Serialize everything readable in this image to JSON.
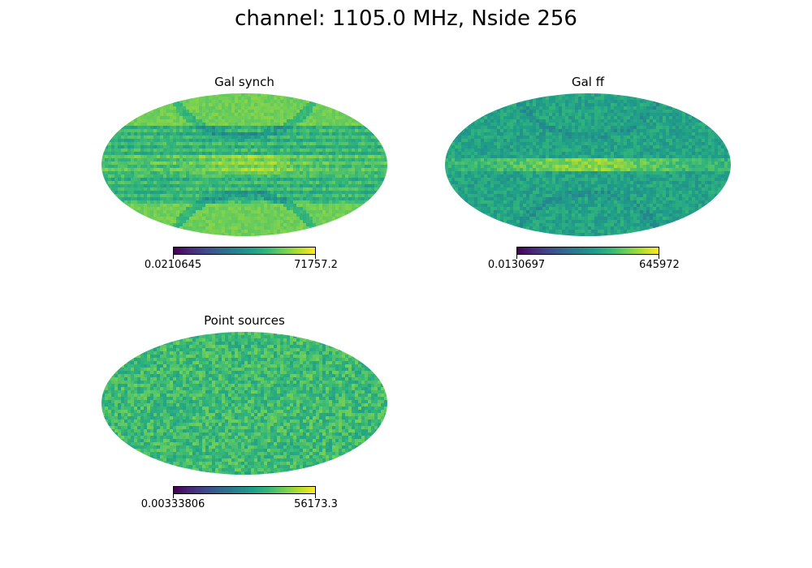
{
  "figure": {
    "suptitle": "channel: 1105.0 MHz, Nside 256"
  },
  "colors": {
    "viridis": [
      "#440154",
      "#482878",
      "#3e4989",
      "#31688e",
      "#26828e",
      "#1f9e89",
      "#35b779",
      "#6ece58",
      "#b5de2b",
      "#fde725"
    ]
  },
  "chart_data": [
    {
      "type": "heatmap",
      "projection": "mollweide",
      "title": "Gal synch",
      "colormap": "viridis",
      "colorbar": {
        "min_label": "0.0210645",
        "max_label": "71757.2",
        "min": 0.0210645,
        "max": 71757.2
      },
      "features": [
        "bright galactic plane band",
        "horizontal striping within |lat| < 30",
        "arc structures near poles"
      ],
      "base_level": 0.78
    },
    {
      "type": "heatmap",
      "projection": "mollweide",
      "title": "Gal ff",
      "colormap": "viridis",
      "colorbar": {
        "min_label": "0.0130697",
        "max_label": "645972",
        "min": 0.0130697,
        "max": 645972
      },
      "features": [
        "bright galactic plane band",
        "mottled blue-green field",
        "arc structures near poles"
      ],
      "base_level": 0.58
    },
    {
      "type": "heatmap",
      "projection": "mollweide",
      "title": "Point sources",
      "colormap": "viridis",
      "colorbar": {
        "min_label": "0.00333806",
        "max_label": "56173.3",
        "min": 0.00333806,
        "max": 56173.3
      },
      "features": [
        "uniform noise-like speckle"
      ],
      "base_level": 0.68
    }
  ]
}
